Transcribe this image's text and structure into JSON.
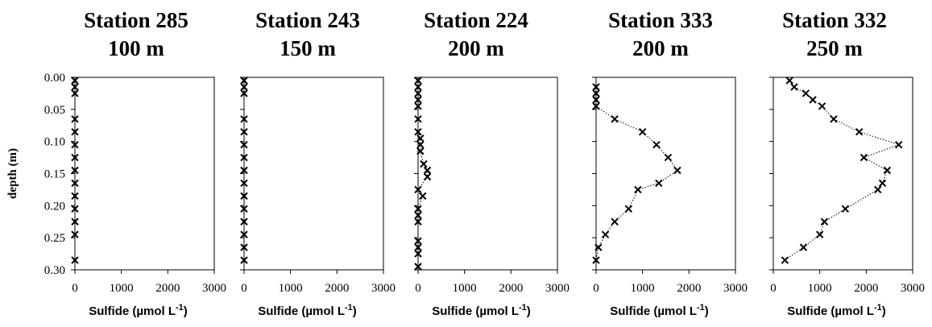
{
  "chart_data": [
    {
      "type": "scatter",
      "title": "Station 285",
      "subtitle": "100 m",
      "xlabel": "Sulfide (µmol L",
      "xlabel_sup": "-1",
      "xlabel_end": ")",
      "ylabel": "depth (m)",
      "xlim": [
        0,
        3000
      ],
      "ylim": [
        0.3,
        0.0
      ],
      "xticks": [
        "0",
        "1000",
        "2000",
        "3000"
      ],
      "yticks": [
        "0.00",
        "0.05",
        "0.10",
        "0.15",
        "0.20",
        "0.25",
        "0.30"
      ],
      "connector": "none",
      "x": [
        0,
        0,
        0,
        0,
        0,
        0,
        0,
        0,
        0,
        0,
        0,
        0,
        0,
        0
      ],
      "y": [
        0.005,
        0.015,
        0.025,
        0.065,
        0.085,
        0.105,
        0.125,
        0.145,
        0.165,
        0.185,
        0.205,
        0.225,
        0.245,
        0.285
      ]
    },
    {
      "type": "scatter",
      "title": "Station 243",
      "subtitle": "150 m",
      "xlabel": "Sulfide (µmol L",
      "xlabel_sup": "-1",
      "xlabel_end": ")",
      "xlim": [
        0,
        3000
      ],
      "ylim": [
        0.3,
        0.0
      ],
      "xticks": [
        "0",
        "1000",
        "2000",
        "3000"
      ],
      "connector": "solid",
      "x": [
        0,
        0,
        0,
        0,
        0,
        0,
        0,
        0,
        0,
        0,
        0,
        0,
        0,
        0,
        0
      ],
      "y": [
        0.005,
        0.015,
        0.025,
        0.065,
        0.085,
        0.105,
        0.125,
        0.145,
        0.165,
        0.185,
        0.205,
        0.225,
        0.245,
        0.265,
        0.285
      ]
    },
    {
      "type": "scatter",
      "title": "Station 224",
      "subtitle": "200 m",
      "xlabel": "Sulfide (µmol L",
      "xlabel_sup": "-1",
      "xlabel_end": ")",
      "xlim": [
        0,
        3000
      ],
      "ylim": [
        0.3,
        0.0
      ],
      "xticks": [
        "0",
        "1000",
        "2000",
        "3000"
      ],
      "connector": "solid",
      "x": [
        0,
        0,
        0,
        0,
        0,
        0,
        0,
        50,
        50,
        50,
        120,
        200,
        200,
        0,
        100,
        0,
        0,
        0,
        0,
        0,
        0,
        0
      ],
      "y": [
        0.005,
        0.015,
        0.025,
        0.035,
        0.045,
        0.065,
        0.085,
        0.095,
        0.105,
        0.115,
        0.135,
        0.145,
        0.155,
        0.175,
        0.185,
        0.205,
        0.215,
        0.225,
        0.255,
        0.265,
        0.275,
        0.295
      ]
    },
    {
      "type": "scatter",
      "title": "Station 333",
      "subtitle": "200 m",
      "xlabel": "Sulfide (µmol L",
      "xlabel_sup": "-1",
      "xlabel_end": ")",
      "xlim": [
        0,
        3000
      ],
      "ylim": [
        0.3,
        0.0
      ],
      "xticks": [
        "0",
        "1000",
        "2000",
        "3000"
      ],
      "connector": "dotted",
      "x": [
        0,
        0,
        0,
        0,
        400,
        1000,
        1300,
        1550,
        1750,
        1350,
        900,
        700,
        400,
        200,
        50,
        0
      ],
      "y": [
        0.015,
        0.025,
        0.035,
        0.045,
        0.065,
        0.085,
        0.105,
        0.125,
        0.145,
        0.165,
        0.175,
        0.205,
        0.225,
        0.245,
        0.265,
        0.285
      ]
    },
    {
      "type": "scatter",
      "title": "Station 332",
      "subtitle": "250 m",
      "xlabel": "Sulfide (µmol L",
      "xlabel_sup": "-1",
      "xlabel_end": ")",
      "xlim": [
        0,
        3000
      ],
      "ylim": [
        0.3,
        0.0
      ],
      "xticks": [
        "0",
        "1000",
        "2000",
        "3000"
      ],
      "connector": "dotted",
      "x": [
        350,
        450,
        700,
        850,
        1050,
        1300,
        1850,
        2700,
        1950,
        2450,
        2350,
        2250,
        1550,
        1100,
        1000,
        650,
        250
      ],
      "y": [
        0.005,
        0.015,
        0.025,
        0.035,
        0.045,
        0.065,
        0.085,
        0.105,
        0.125,
        0.145,
        0.165,
        0.175,
        0.205,
        0.225,
        0.245,
        0.265,
        0.285
      ]
    }
  ]
}
